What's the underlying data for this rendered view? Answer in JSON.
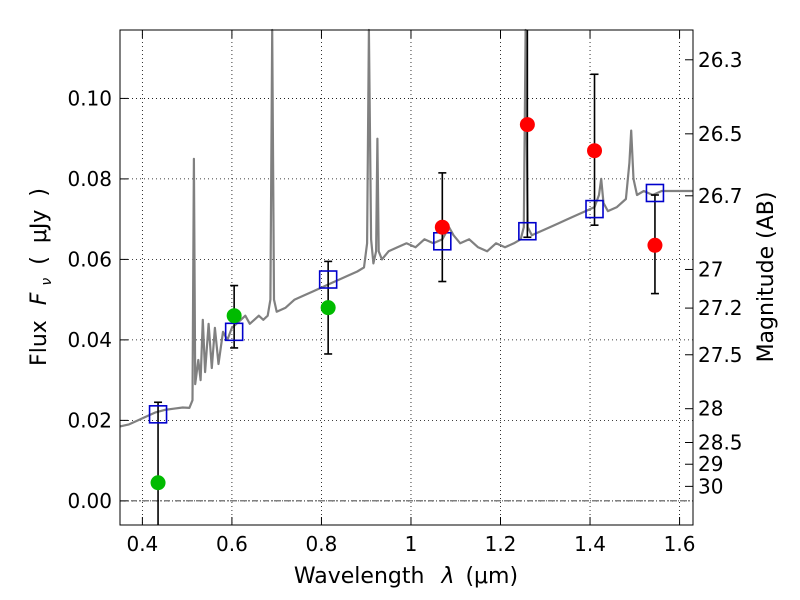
{
  "chart_data": {
    "type": "scatter",
    "xlabel": "Wavelength",
    "xlabel_symbol": "λ",
    "xlabel_unit": "(μm)",
    "ylabel": "Flux",
    "ylabel_symbol": "F",
    "ylabel_subscript": "ν",
    "ylabel_unit": "μJy",
    "ylabel_right": "Magnitude (AB)",
    "xlim": [
      0.35,
      1.63
    ],
    "ylim": [
      -0.006,
      0.117
    ],
    "grid": true,
    "x_ticks": [
      0.4,
      0.6,
      0.8,
      1.0,
      1.2,
      1.4,
      1.6
    ],
    "x_tick_labels": [
      "0.4",
      "0.6",
      "0.8",
      "1",
      "1.2",
      "1.4",
      "1.6"
    ],
    "y_ticks": [
      0.0,
      0.02,
      0.04,
      0.06,
      0.08,
      0.1
    ],
    "y_tick_labels": [
      "0.00",
      "0.02",
      "0.04",
      "0.06",
      "0.08",
      "0.10"
    ],
    "mag_ticks": [
      {
        "label": "26.3",
        "flux": 0.1096
      },
      {
        "label": "26.5",
        "flux": 0.0912
      },
      {
        "label": "26.7",
        "flux": 0.0758
      },
      {
        "label": "27",
        "flux": 0.0575
      },
      {
        "label": "27.2",
        "flux": 0.0479
      },
      {
        "label": "27.5",
        "flux": 0.0363
      },
      {
        "label": "28",
        "flux": 0.0229
      },
      {
        "label": "28.5",
        "flux": 0.0145
      },
      {
        "label": "29",
        "flux": 0.0091
      },
      {
        "label": "30",
        "flux": 0.0036
      }
    ],
    "colors": {
      "spectrum": "#808080",
      "model_points": "#0000cc",
      "green_points": "#00bb00",
      "red_points": "#ff0000",
      "errorbars": "#000000"
    },
    "spectrum": [
      [
        0.35,
        0.0185
      ],
      [
        0.37,
        0.019
      ],
      [
        0.39,
        0.02
      ],
      [
        0.41,
        0.021
      ],
      [
        0.43,
        0.022
      ],
      [
        0.45,
        0.0226
      ],
      [
        0.47,
        0.0229
      ],
      [
        0.49,
        0.0232
      ],
      [
        0.505,
        0.0231
      ],
      [
        0.512,
        0.025
      ],
      [
        0.515,
        0.085
      ],
      [
        0.518,
        0.029
      ],
      [
        0.525,
        0.035
      ],
      [
        0.53,
        0.03
      ],
      [
        0.535,
        0.045
      ],
      [
        0.54,
        0.032
      ],
      [
        0.548,
        0.044
      ],
      [
        0.555,
        0.033
      ],
      [
        0.562,
        0.043
      ],
      [
        0.57,
        0.034
      ],
      [
        0.58,
        0.042
      ],
      [
        0.59,
        0.04
      ],
      [
        0.6,
        0.043
      ],
      [
        0.61,
        0.044
      ],
      [
        0.62,
        0.045
      ],
      [
        0.63,
        0.046
      ],
      [
        0.64,
        0.044
      ],
      [
        0.65,
        0.045
      ],
      [
        0.66,
        0.046
      ],
      [
        0.67,
        0.045
      ],
      [
        0.68,
        0.046
      ],
      [
        0.686,
        0.05
      ],
      [
        0.69,
        0.117
      ],
      [
        0.694,
        0.05
      ],
      [
        0.7,
        0.047
      ],
      [
        0.72,
        0.048
      ],
      [
        0.74,
        0.05
      ],
      [
        0.76,
        0.051
      ],
      [
        0.78,
        0.052
      ],
      [
        0.8,
        0.053
      ],
      [
        0.82,
        0.054
      ],
      [
        0.84,
        0.055
      ],
      [
        0.86,
        0.056
      ],
      [
        0.88,
        0.057
      ],
      [
        0.895,
        0.058
      ],
      [
        0.902,
        0.064
      ],
      [
        0.906,
        0.117
      ],
      [
        0.911,
        0.065
      ],
      [
        0.916,
        0.059
      ],
      [
        0.922,
        0.062
      ],
      [
        0.925,
        0.09
      ],
      [
        0.928,
        0.062
      ],
      [
        0.935,
        0.06
      ],
      [
        0.95,
        0.062
      ],
      [
        0.97,
        0.063
      ],
      [
        0.99,
        0.064
      ],
      [
        1.01,
        0.063
      ],
      [
        1.03,
        0.065
      ],
      [
        1.05,
        0.064
      ],
      [
        1.07,
        0.065
      ],
      [
        1.085,
        0.068
      ],
      [
        1.095,
        0.066
      ],
      [
        1.11,
        0.064
      ],
      [
        1.13,
        0.065
      ],
      [
        1.15,
        0.063
      ],
      [
        1.17,
        0.062
      ],
      [
        1.19,
        0.064
      ],
      [
        1.21,
        0.063
      ],
      [
        1.23,
        0.064
      ],
      [
        1.245,
        0.065
      ],
      [
        1.252,
        0.068
      ],
      [
        1.256,
        0.117
      ],
      [
        1.261,
        0.068
      ],
      [
        1.27,
        0.066
      ],
      [
        1.29,
        0.067
      ],
      [
        1.31,
        0.068
      ],
      [
        1.33,
        0.069
      ],
      [
        1.35,
        0.07
      ],
      [
        1.37,
        0.071
      ],
      [
        1.39,
        0.072
      ],
      [
        1.41,
        0.073
      ],
      [
        1.42,
        0.076
      ],
      [
        1.425,
        0.08
      ],
      [
        1.43,
        0.074
      ],
      [
        1.44,
        0.072
      ],
      [
        1.46,
        0.073
      ],
      [
        1.48,
        0.075
      ],
      [
        1.488,
        0.084
      ],
      [
        1.492,
        0.092
      ],
      [
        1.497,
        0.08
      ],
      [
        1.505,
        0.076
      ],
      [
        1.52,
        0.077
      ],
      [
        1.54,
        0.076
      ],
      [
        1.56,
        0.077
      ],
      [
        1.58,
        0.077
      ],
      [
        1.6,
        0.077
      ],
      [
        1.63,
        0.077
      ]
    ],
    "model_points": [
      {
        "x": 0.435,
        "y": 0.0215
      },
      {
        "x": 0.605,
        "y": 0.042
      },
      {
        "x": 0.815,
        "y": 0.055
      },
      {
        "x": 1.07,
        "y": 0.0645
      },
      {
        "x": 1.26,
        "y": 0.067
      },
      {
        "x": 1.41,
        "y": 0.0725
      },
      {
        "x": 1.545,
        "y": 0.0765
      }
    ],
    "green_points": [
      {
        "x": 0.435,
        "y": 0.0045,
        "yerr_low": -0.006,
        "yerr_high": 0.0245
      },
      {
        "x": 0.605,
        "y": 0.046,
        "yerr_low": 0.038,
        "yerr_high": 0.0535
      },
      {
        "x": 0.815,
        "y": 0.048,
        "yerr_low": 0.0365,
        "yerr_high": 0.0595
      }
    ],
    "red_points": [
      {
        "x": 1.07,
        "y": 0.068,
        "yerr_low": 0.0545,
        "yerr_high": 0.0815
      },
      {
        "x": 1.26,
        "y": 0.0935,
        "yerr_low": 0.0655,
        "yerr_high": 0.117
      },
      {
        "x": 1.41,
        "y": 0.087,
        "yerr_low": 0.0685,
        "yerr_high": 0.106
      },
      {
        "x": 1.545,
        "y": 0.0635,
        "yerr_low": 0.0515,
        "yerr_high": 0.076
      }
    ]
  }
}
